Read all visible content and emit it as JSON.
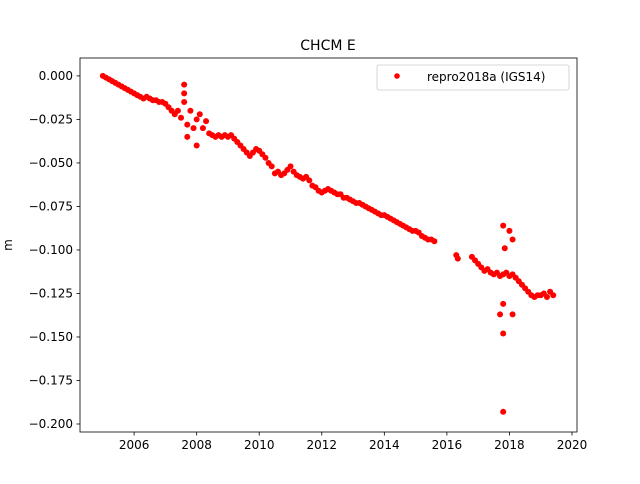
{
  "chart_data": {
    "type": "scatter",
    "title": "CHCM E",
    "xlabel": "",
    "ylabel": "m",
    "xlim": [
      2004.27,
      2020.16
    ],
    "ylim": [
      -0.2046,
      0.0103
    ],
    "xticks": [
      2006,
      2008,
      2010,
      2012,
      2014,
      2016,
      2018,
      2020
    ],
    "xtick_labels": [
      "2006",
      "2008",
      "2010",
      "2012",
      "2014",
      "2016",
      "2018",
      "2020"
    ],
    "yticks": [
      0,
      -0.025,
      -0.05,
      -0.075,
      -0.1,
      -0.125,
      -0.15,
      -0.175,
      -0.2
    ],
    "ytick_labels": [
      "0.000",
      "−0.025",
      "−0.050",
      "−0.075",
      "−0.100",
      "−0.125",
      "−0.150",
      "−0.175",
      "−0.200"
    ],
    "grid": false,
    "legend_position": "top-right",
    "series": [
      {
        "name": "repro2018a (IGS14)",
        "color": "#ff0000",
        "marker": "circle",
        "x": [
          2005.0,
          2005.1,
          2005.2,
          2005.3,
          2005.4,
          2005.5,
          2005.6,
          2005.7,
          2005.8,
          2005.9,
          2006.0,
          2006.1,
          2006.2,
          2006.3,
          2006.4,
          2006.5,
          2006.6,
          2006.7,
          2006.8,
          2006.9,
          2007.0,
          2007.1,
          2007.2,
          2007.3,
          2007.4,
          2007.5,
          2007.6,
          2007.7,
          2007.8,
          2007.9,
          2008.0,
          2008.1,
          2008.2,
          2008.3,
          2008.4,
          2008.5,
          2008.6,
          2008.7,
          2008.8,
          2008.9,
          2009.0,
          2009.1,
          2009.2,
          2009.3,
          2009.4,
          2009.5,
          2009.6,
          2009.7,
          2009.8,
          2009.9,
          2010.0,
          2010.1,
          2010.2,
          2010.3,
          2010.4,
          2010.5,
          2010.6,
          2010.7,
          2010.8,
          2010.9,
          2011.0,
          2011.1,
          2011.2,
          2011.3,
          2011.4,
          2011.5,
          2011.6,
          2011.7,
          2011.8,
          2011.9,
          2012.0,
          2012.1,
          2012.2,
          2012.3,
          2012.4,
          2012.5,
          2012.6,
          2012.7,
          2012.8,
          2012.9,
          2013.0,
          2013.1,
          2013.2,
          2013.3,
          2013.4,
          2013.5,
          2013.6,
          2013.7,
          2013.8,
          2013.9,
          2014.0,
          2014.1,
          2014.2,
          2014.3,
          2014.4,
          2014.5,
          2014.6,
          2014.7,
          2014.8,
          2014.9,
          2015.0,
          2015.1,
          2015.2,
          2015.3,
          2015.4,
          2015.5,
          2015.6,
          2016.3,
          2016.35,
          2016.8,
          2016.9,
          2017.0,
          2017.1,
          2017.2,
          2017.3,
          2017.4,
          2017.5,
          2017.6,
          2017.7,
          2017.8,
          2017.9,
          2018.0,
          2018.1,
          2018.2,
          2018.3,
          2018.4,
          2018.5,
          2018.6,
          2018.7,
          2018.8,
          2018.9,
          2019.0,
          2019.1,
          2019.2,
          2019.3,
          2019.4,
          2007.6,
          2007.6,
          2007.7,
          2008.0,
          2017.8,
          2017.85,
          2018.0,
          2018.1,
          2017.8,
          2017.8,
          2017.7,
          2018.1,
          2017.8
        ],
        "y": [
          0.0,
          -0.001,
          -0.002,
          -0.003,
          -0.004,
          -0.005,
          -0.006,
          -0.007,
          -0.008,
          -0.009,
          -0.01,
          -0.011,
          -0.012,
          -0.013,
          -0.012,
          -0.013,
          -0.014,
          -0.014,
          -0.015,
          -0.015,
          -0.016,
          -0.018,
          -0.02,
          -0.022,
          -0.02,
          -0.024,
          -0.015,
          -0.028,
          -0.02,
          -0.03,
          -0.025,
          -0.022,
          -0.03,
          -0.026,
          -0.033,
          -0.034,
          -0.035,
          -0.034,
          -0.035,
          -0.034,
          -0.035,
          -0.034,
          -0.036,
          -0.038,
          -0.04,
          -0.042,
          -0.044,
          -0.046,
          -0.044,
          -0.042,
          -0.043,
          -0.045,
          -0.047,
          -0.05,
          -0.052,
          -0.056,
          -0.055,
          -0.057,
          -0.056,
          -0.054,
          -0.052,
          -0.055,
          -0.057,
          -0.058,
          -0.059,
          -0.058,
          -0.06,
          -0.063,
          -0.064,
          -0.066,
          -0.067,
          -0.066,
          -0.065,
          -0.066,
          -0.067,
          -0.068,
          -0.068,
          -0.07,
          -0.07,
          -0.071,
          -0.072,
          -0.073,
          -0.073,
          -0.074,
          -0.075,
          -0.076,
          -0.077,
          -0.078,
          -0.079,
          -0.08,
          -0.08,
          -0.081,
          -0.082,
          -0.083,
          -0.084,
          -0.085,
          -0.086,
          -0.087,
          -0.088,
          -0.089,
          -0.089,
          -0.09,
          -0.092,
          -0.093,
          -0.094,
          -0.094,
          -0.095,
          -0.103,
          -0.105,
          -0.104,
          -0.106,
          -0.108,
          -0.11,
          -0.112,
          -0.111,
          -0.113,
          -0.114,
          -0.113,
          -0.115,
          -0.114,
          -0.113,
          -0.115,
          -0.114,
          -0.116,
          -0.118,
          -0.12,
          -0.122,
          -0.124,
          -0.126,
          -0.127,
          -0.126,
          -0.126,
          -0.125,
          -0.127,
          -0.124,
          -0.126,
          -0.005,
          -0.01,
          -0.035,
          -0.04,
          -0.086,
          -0.099,
          -0.089,
          -0.094,
          -0.148,
          -0.193,
          -0.137,
          -0.137,
          -0.131
        ]
      }
    ]
  }
}
